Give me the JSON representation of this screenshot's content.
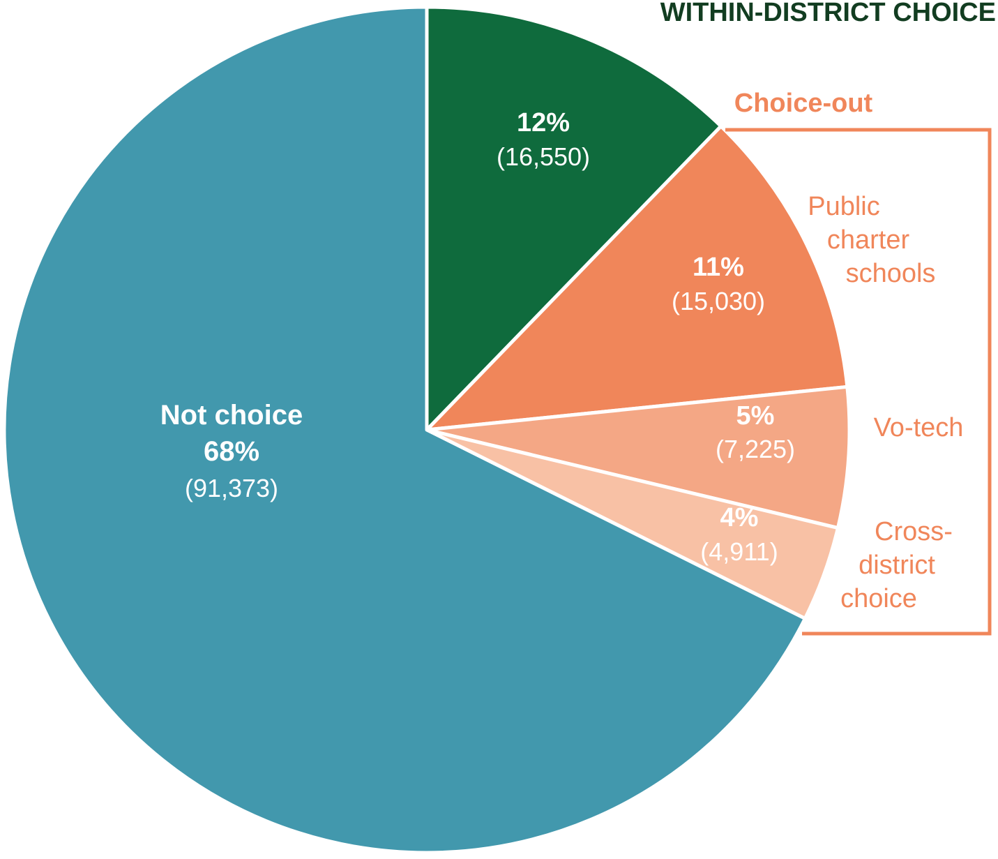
{
  "chart_data": {
    "type": "pie",
    "title": "",
    "slices": [
      {
        "name": "Within-district choice",
        "percent": "12%",
        "value": 16550,
        "value_label": "(16,550)",
        "color": "#0f6b3d"
      },
      {
        "name": "Public charter schools",
        "percent": "11%",
        "value": 15030,
        "value_label": "(15,030)",
        "color": "#f0865a"
      },
      {
        "name": "Vo-tech",
        "percent": "5%",
        "value": 7225,
        "value_label": "(7,225)",
        "color": "#f4a785"
      },
      {
        "name": "Cross-district choice",
        "percent": "4%",
        "value": 4911,
        "value_label": "(4,911)",
        "color": "#f8c1a5"
      },
      {
        "name": "Not choice",
        "percent": "68%",
        "value": 91373,
        "value_label": "(91,373)",
        "color": "#4298ad"
      }
    ],
    "annotations": {
      "within_district": "WITHIN-DISTRICT CHOICE",
      "choice_out": "Choice-out",
      "not_choice": "Not choice",
      "charter_lines": [
        "Public",
        "charter",
        "schools"
      ],
      "votech_lines": [
        "Vo-tech"
      ],
      "cross_lines": [
        "Cross-",
        "district",
        "choice"
      ]
    },
    "colors": {
      "within_title": "#123d21",
      "choice_out": "#f0865a",
      "outline": "#ffffff"
    }
  }
}
